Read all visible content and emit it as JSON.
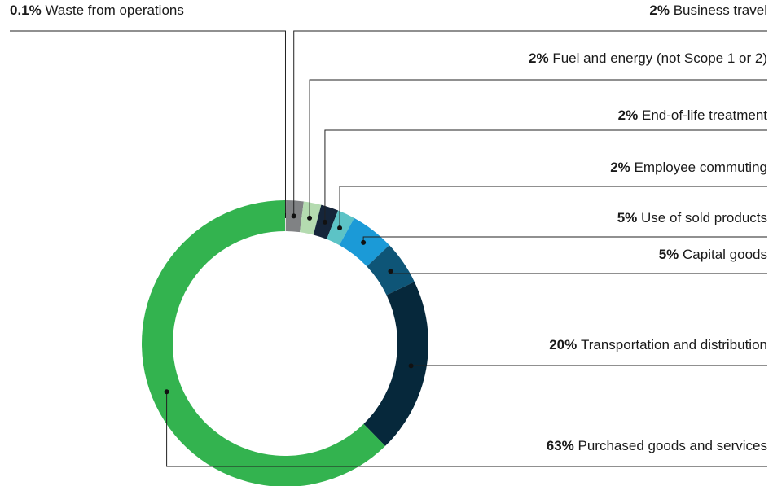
{
  "chart_data": {
    "type": "donut",
    "categories": [
      "Waste from operations",
      "Business travel",
      "Fuel and energy (not Scope 1 or 2)",
      "End-of-life treatment",
      "Employee commuting",
      "Use of sold products",
      "Capital goods",
      "Transportation and distribution",
      "Purchased goods and services"
    ],
    "values": [
      0.1,
      2,
      2,
      2,
      2,
      5,
      5,
      20,
      63
    ],
    "value_labels": [
      "0.1%",
      "2%",
      "2%",
      "2%",
      "2%",
      "5%",
      "5%",
      "20%",
      "63%"
    ],
    "colors": [
      "#e4e6e4",
      "#808284",
      "#b4dbb0",
      "#15253a",
      "#5cc3c6",
      "#1b9ad7",
      "#0e5577",
      "#06283b",
      "#33b34f"
    ]
  }
}
